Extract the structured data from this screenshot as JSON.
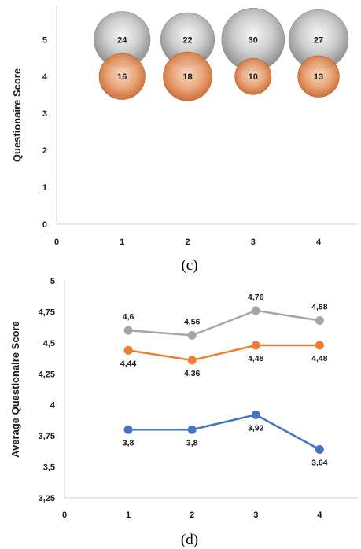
{
  "chart_data": [
    {
      "type": "bubble",
      "panel_label": "(c)",
      "ylabel": "Questionaire Score",
      "xlim": [
        0,
        4.6
      ],
      "ylim": [
        0,
        5.9
      ],
      "x_ticks": [
        0,
        1,
        2,
        3,
        4
      ],
      "y_ticks": [
        0,
        1,
        2,
        3,
        4,
        5
      ],
      "series": [
        {
          "color": "#9e9e9e",
          "x": [
            1,
            2,
            3,
            4
          ],
          "y": [
            5,
            5,
            5,
            5
          ],
          "size": [
            24,
            22,
            30,
            27
          ]
        },
        {
          "color": "#e07b39",
          "x": [
            1,
            2,
            3,
            4
          ],
          "y": [
            4,
            4,
            4,
            4
          ],
          "size": [
            16,
            18,
            10,
            13
          ]
        }
      ]
    },
    {
      "type": "line",
      "panel_label": "(d)",
      "ylabel": "Average Questionaire Score",
      "xlim": [
        0,
        4.6
      ],
      "ylim": [
        3.25,
        5
      ],
      "x_ticks": [
        0,
        1,
        2,
        3,
        4
      ],
      "y_ticks": [
        3.25,
        3.5,
        3.75,
        4,
        4.25,
        4.5,
        4.75,
        5
      ],
      "y_tick_labels": [
        "3,25",
        "3,5",
        "3,75",
        "4",
        "4,25",
        "4,5",
        "4,75",
        "5"
      ],
      "series": [
        {
          "color": "#a5a5a5",
          "x": [
            1,
            2,
            3,
            4
          ],
          "y": [
            4.6,
            4.56,
            4.76,
            4.68
          ],
          "labels": [
            "4,6",
            "4,56",
            "4,76",
            "4,68"
          ],
          "label_pos": "above"
        },
        {
          "color": "#ed7d31",
          "x": [
            1,
            2,
            3,
            4
          ],
          "y": [
            4.44,
            4.36,
            4.48,
            4.48
          ],
          "labels": [
            "4,44",
            "4,36",
            "4,48",
            "4,48"
          ],
          "label_pos": "below"
        },
        {
          "color": "#4472c4",
          "x": [
            1,
            2,
            3,
            4
          ],
          "y": [
            3.8,
            3.8,
            3.92,
            3.64
          ],
          "labels": [
            "3,8",
            "3,8",
            "3,92",
            "3,64"
          ],
          "label_pos": "below"
        }
      ]
    }
  ]
}
